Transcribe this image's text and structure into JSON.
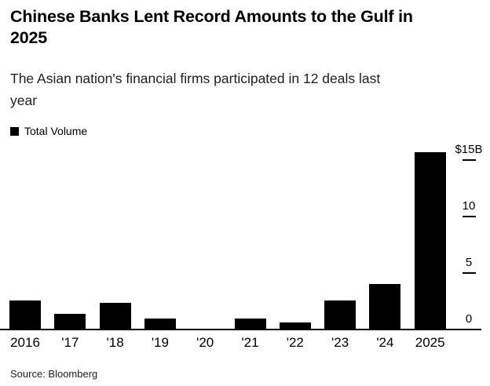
{
  "header": {
    "title_lines": [
      "Chinese Banks Lent Record Amounts to the Gulf in",
      "2025"
    ],
    "subtitle_lines": [
      "The Asian nation's financial firms participated in 12 deals last",
      "year"
    ]
  },
  "legend": {
    "label": "Total Volume",
    "swatch_color": "#000000"
  },
  "chart_data": {
    "type": "bar",
    "title": "Chinese Banks Lent Record Amounts to the Gulf in 2025",
    "subtitle": "The Asian nation's financial firms participated in 12 deals last year",
    "series_name": "Total Volume",
    "categories": [
      "2016",
      "'17",
      "'18",
      "'19",
      "'20",
      "'21",
      "'22",
      "'23",
      "'24",
      "2025"
    ],
    "values": [
      2.6,
      1.4,
      2.35,
      1.0,
      0.1,
      0.95,
      0.6,
      2.55,
      4.0,
      15.7
    ],
    "y_unit": "$B",
    "y_ticks": [
      {
        "label": "$15B",
        "value": 15
      },
      {
        "label": "10",
        "value": 10
      },
      {
        "label": "5",
        "value": 5
      },
      {
        "label": "0",
        "value": 0
      }
    ],
    "ylim": [
      0,
      15.7
    ],
    "xlabel": "",
    "ylabel": "",
    "bar_color": "#000000",
    "grid": false,
    "legend_position": "top-left",
    "axis_side": "right"
  },
  "footer": {
    "source": "Source: Bloomberg"
  }
}
